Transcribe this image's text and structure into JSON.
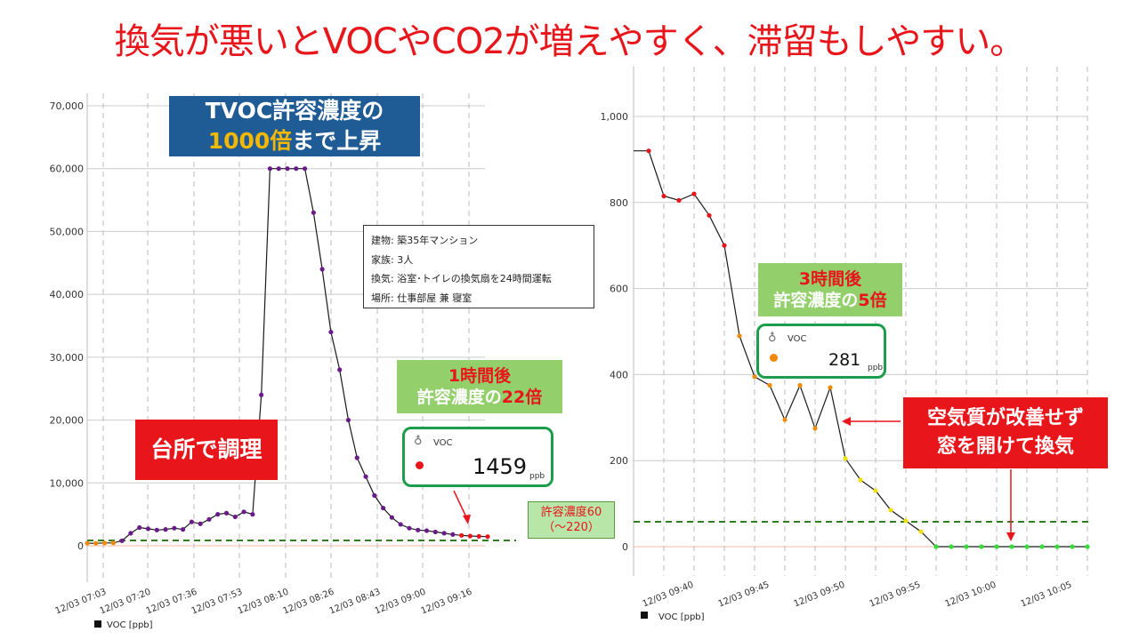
{
  "title": "換気が悪いとVOCやCO2が増えやすく、滞留もしやすい。",
  "colors": {
    "title": "#e8151b",
    "line": "#1a1a1a",
    "purple_marker": "#6a1b8a",
    "red_marker": "#e8151b",
    "orange_marker": "#f08a00",
    "yellow_marker": "#f0e000",
    "green_marker": "#33dd33",
    "threshold": "#2e7d1f",
    "callout_blue": "#1f5b95",
    "callout_green": "#93cf6b",
    "callout_red": "#e8151b",
    "card_border": "#1c9d4b"
  },
  "callouts": {
    "peak": {
      "line1": "TVOC許容濃度の",
      "hl": "1000倍",
      "rest": "まで上昇"
    },
    "cooking": "台所で調理",
    "hour1": {
      "line1": "1時間後",
      "pre": "許容濃度の",
      "hl": "22倍"
    },
    "hour3": {
      "line1": "3時間後",
      "pre": "許容濃度の",
      "hl": "5倍"
    },
    "ventilate": {
      "line1": "空気質が改善せず",
      "line2": "窓を開けて換気"
    }
  },
  "infobox": {
    "building": "建物: 築35年マンション",
    "family": "家族: 3人",
    "ventilation": "換気: 浴室･トイレの換気扇を24時間運転",
    "location": "場所: 仕事部屋 兼 寝室"
  },
  "allowable": {
    "line1": "許容濃度60",
    "line2": "（～220）"
  },
  "cards": [
    {
      "icon": "flask-icon",
      "label": "VOC",
      "value": "1459",
      "unit": "ppb",
      "dot_color": "#e8151b"
    },
    {
      "icon": "flask-icon",
      "label": "VOC",
      "value": "281",
      "unit": "ppb",
      "dot_color": "#f08a00"
    }
  ],
  "chart_data": [
    {
      "type": "line",
      "legend": "VOC [ppb]",
      "ylim": [
        0,
        70000
      ],
      "yticks": [
        "0",
        "10,000",
        "20,000",
        "30,000",
        "40,000",
        "50,000",
        "60,000",
        "70,000"
      ],
      "xticks": [
        "12/03 07:03",
        "12/03 07:20",
        "12/03 07:36",
        "12/03 07:53",
        "12/03 08:10",
        "12/03 08:26",
        "12/03 08:43",
        "12/03 09:00",
        "12/03 09:16"
      ],
      "threshold": 60,
      "series": [
        {
          "x": [
            0,
            3,
            6,
            9,
            12,
            15,
            18,
            21,
            24,
            27,
            30,
            33,
            36,
            39,
            42,
            45,
            48,
            51,
            54,
            57,
            60,
            63,
            66,
            69,
            72,
            75,
            78,
            81,
            84,
            87,
            90,
            93,
            96,
            99,
            102,
            105,
            108,
            111,
            114,
            117,
            120,
            123,
            126,
            129,
            132,
            135,
            138
          ],
          "y": [
            400,
            400,
            450,
            450,
            800,
            2000,
            2900,
            2700,
            2500,
            2600,
            2800,
            2600,
            3800,
            3500,
            4200,
            5000,
            5200,
            4600,
            5400,
            5000,
            24000,
            60000,
            60000,
            60000,
            60000,
            60000,
            53000,
            44000,
            34000,
            28000,
            20000,
            14000,
            11000,
            8000,
            6000,
            4500,
            3400,
            2800,
            2500,
            2400,
            2200,
            2000,
            1800,
            1650,
            1550,
            1500,
            1459
          ]
        }
      ]
    },
    {
      "type": "line",
      "legend": "VOC [ppb]",
      "ylim": [
        0,
        1000
      ],
      "yticks": [
        "0",
        "200",
        "400",
        "600",
        "800",
        "1,000"
      ],
      "xticks": [
        "12/03 09:40",
        "12/03 09:45",
        "12/03 09:50",
        "12/03 09:55",
        "12/03 10:00",
        "12/03 10:05"
      ],
      "threshold": 60,
      "series": [
        {
          "x": [
            0,
            1,
            2,
            3,
            4,
            5,
            6,
            7,
            8,
            9,
            10,
            11,
            12,
            13,
            14,
            15,
            16,
            17,
            18,
            19,
            20,
            21,
            22,
            23,
            24,
            25,
            26,
            27,
            28,
            29,
            30
          ],
          "y": [
            920,
            920,
            815,
            805,
            820,
            770,
            700,
            490,
            395,
            375,
            295,
            375,
            275,
            370,
            205,
            155,
            130,
            85,
            60,
            35,
            0,
            0,
            0,
            0,
            0,
            0,
            0,
            0,
            0,
            0,
            0
          ]
        }
      ]
    }
  ]
}
